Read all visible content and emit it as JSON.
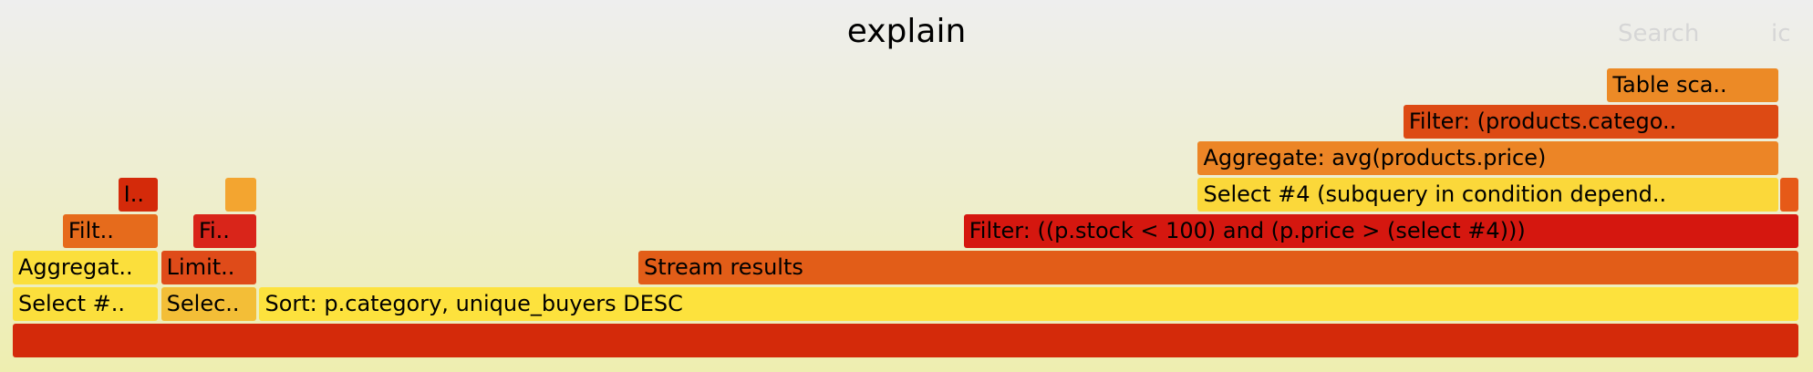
{
  "header": {
    "title": "explain",
    "search_label": "Search",
    "ic_label": "ic"
  },
  "frames": [
    {
      "id": "root",
      "label": "",
      "depth": 0,
      "start": 0,
      "end": 100,
      "color": "#d42a0a"
    },
    {
      "id": "select-a",
      "label": "Select #..",
      "depth": 1,
      "start": 0,
      "end": 8.2,
      "color": "#fbdf3c"
    },
    {
      "id": "select-b",
      "label": "Selec..",
      "depth": 1,
      "start": 8.3,
      "end": 13.7,
      "color": "#f3be37"
    },
    {
      "id": "sort",
      "label": "Sort: p.category, unique_buyers DESC",
      "depth": 1,
      "start": 13.8,
      "end": 100,
      "color": "#fde23d"
    },
    {
      "id": "aggregate-a",
      "label": "Aggregat..",
      "depth": 2,
      "start": 0,
      "end": 8.2,
      "color": "#fbdf3c"
    },
    {
      "id": "limit",
      "label": "Limit..",
      "depth": 2,
      "start": 8.3,
      "end": 13.7,
      "color": "#df4b19"
    },
    {
      "id": "stream-results",
      "label": "Stream results",
      "depth": 2,
      "start": 35.0,
      "end": 100,
      "color": "#e25d18"
    },
    {
      "id": "filter-a",
      "label": "Filt..",
      "depth": 3,
      "start": 2.8,
      "end": 8.2,
      "color": "#e66b1c"
    },
    {
      "id": "filter-b",
      "label": "Fi..",
      "depth": 3,
      "start": 10.1,
      "end": 13.7,
      "color": "#d9251a"
    },
    {
      "id": "filter-main",
      "label": "Filter: ((p.stock < 100) and (p.price > (select #4)))",
      "depth": 3,
      "start": 53.2,
      "end": 100,
      "color": "#d5170f"
    },
    {
      "id": "index-a",
      "label": "I..",
      "depth": 4,
      "start": 5.9,
      "end": 8.2,
      "color": "#d42a0a"
    },
    {
      "id": "small-b",
      "label": "",
      "depth": 4,
      "start": 11.9,
      "end": 13.7,
      "color": "#f3a530"
    },
    {
      "id": "select-4",
      "label": "Select #4 (subquery in condition depend..",
      "depth": 4,
      "start": 66.3,
      "end": 98.9,
      "color": "#fbd83a"
    },
    {
      "id": "small-c",
      "label": "",
      "depth": 4,
      "start": 98.9,
      "end": 100,
      "color": "#e65a18"
    },
    {
      "id": "aggregate-avg",
      "label": "Aggregate: avg(products.price)",
      "depth": 5,
      "start": 66.3,
      "end": 98.9,
      "color": "#ec8526"
    },
    {
      "id": "filter-category",
      "label": "Filter: (products.catego..",
      "depth": 6,
      "start": 77.8,
      "end": 98.9,
      "color": "#dd4a14"
    },
    {
      "id": "table-scan",
      "label": "Table sca..",
      "depth": 7,
      "start": 89.2,
      "end": 98.9,
      "color": "#ec8a26"
    }
  ]
}
